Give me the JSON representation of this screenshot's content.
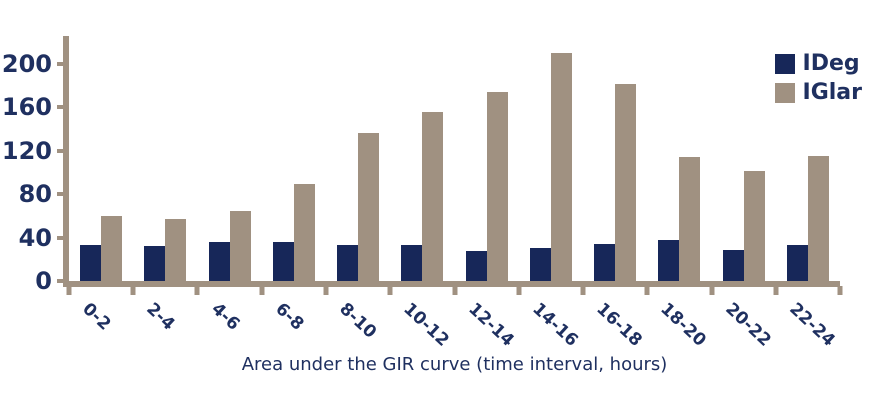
{
  "chart_data": {
    "type": "bar",
    "title": "",
    "xlabel": "Area under the GIR curve (time interval, hours)",
    "ylabel": "",
    "categories": [
      "0-2",
      "2-4",
      "4-6",
      "6-8",
      "8-10",
      "10-12",
      "12-14",
      "14-16",
      "16-18",
      "18-20",
      "20-22",
      "22-24"
    ],
    "series": [
      {
        "name": "IDeg",
        "color": "#172759",
        "values": [
          33,
          32,
          36,
          36,
          33,
          33,
          28,
          30,
          34,
          38,
          29,
          33
        ]
      },
      {
        "name": "IGlar",
        "color": "#a09181",
        "values": [
          60,
          57,
          65,
          89,
          136,
          156,
          174,
          210,
          182,
          114,
          101,
          115
        ]
      }
    ],
    "yticks": [
      0,
      40,
      80,
      120,
      160,
      200
    ],
    "ylim": [
      0,
      224
    ],
    "grid": false,
    "legend_position": "top-right",
    "axis_color": "#a09181",
    "text_color": "#1f3060",
    "tick_label_rotation_deg": 43
  }
}
